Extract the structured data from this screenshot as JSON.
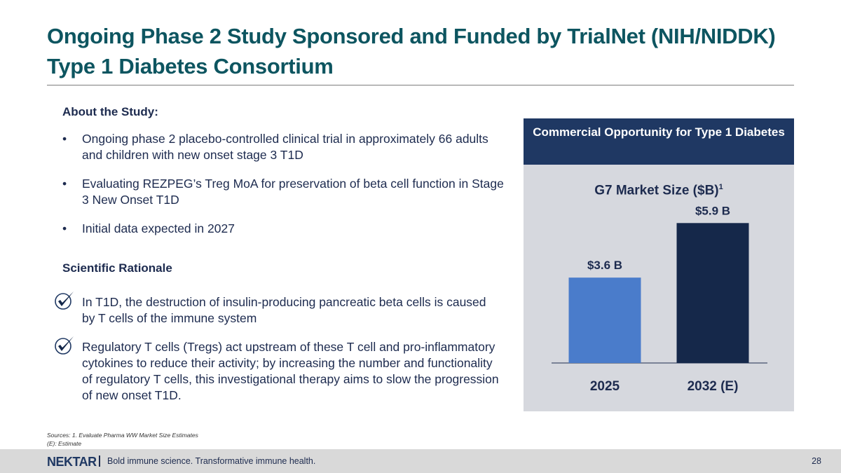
{
  "slide": {
    "title_line1": "Ongoing Phase 2 Study Sponsored and Funded by TrialNet (NIH/NIDDK)",
    "title_line2": "Type 1 Diabetes Consortium"
  },
  "about": {
    "heading": "About the Study:",
    "bullet_glyph": "•",
    "bullets": [
      "Ongoing phase 2 placebo-controlled clinical trial in approximately 66 adults and children with new onset stage 3 T1D",
      "Evaluating REZPEG’s Treg MoA for preservation of beta cell function in Stage 3 New Onset T1D",
      "Initial data expected in 2027"
    ]
  },
  "rationale": {
    "heading": "Scientific Rationale",
    "items": [
      "In T1D, the destruction of insulin-producing pancreatic beta cells is caused by T cells of the immune system",
      "Regulatory T cells (Tregs) act upstream of these T cell and pro-inflammatory cytokines to reduce their activity; by increasing the number and functionality of regulatory T cells, this investigational therapy aims to slow the progression of new onset T1D."
    ],
    "icon": "checkmark-circle-icon"
  },
  "panel": {
    "header": "Commercial Opportunity for Type 1 Diabetes"
  },
  "chart_data": {
    "type": "bar",
    "title": "G7 Market Size ($B)",
    "title_superscript": "1",
    "categories": [
      "2025",
      "2032 (E)"
    ],
    "values": [
      3.6,
      5.9
    ],
    "data_labels": [
      "$3.6 B",
      "$5.9 B"
    ],
    "colors": [
      "#4a7ccb",
      "#15284a"
    ],
    "ylim": [
      0,
      6.5
    ],
    "xlabel": "",
    "ylabel": ""
  },
  "sources": {
    "line1": "Sources: 1. Evaluate Pharma WW Market Size Estimates",
    "line2": "(E): Estimate"
  },
  "footer": {
    "logo_text": "NEKTAR",
    "tagline": "Bold immune science. Transformative immune health.",
    "page_number": "28"
  },
  "colors": {
    "title": "#0d5560",
    "text": "#1d2b4f",
    "panel_header": "#1f3863",
    "panel_bg": "#d6d8de",
    "footer_bg": "#d9d9d9"
  }
}
